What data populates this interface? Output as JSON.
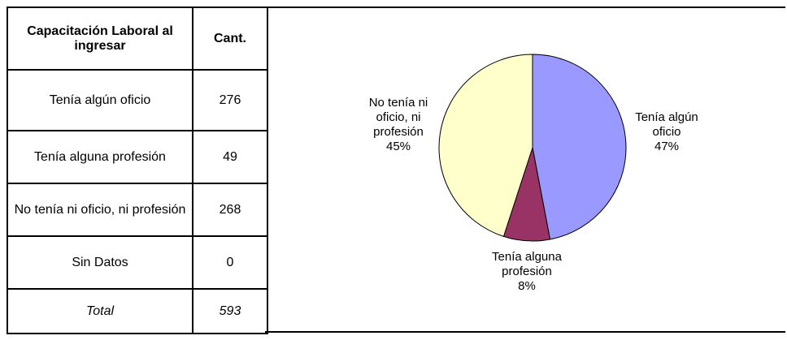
{
  "table": {
    "header": [
      "Capacitación Laboral al ingresar",
      "Cant."
    ],
    "rows": [
      [
        "Tenía algún oficio",
        "276"
      ],
      [
        "Tenía alguna profesión",
        "49"
      ],
      [
        "No tenía ni oficio, ni profesión",
        "268"
      ],
      [
        "Sin Datos",
        "0"
      ],
      [
        "Total",
        "593"
      ]
    ]
  },
  "chart_data": {
    "type": "pie",
    "categories": [
      "Tenía algún oficio",
      "Tenía alguna profesión",
      "No tenía ni oficio, ni profesión"
    ],
    "values": [
      47,
      8,
      45
    ],
    "value_labels": [
      "47%",
      "8%",
      "45%"
    ],
    "colors": [
      "#9999ff",
      "#993366",
      "#ffffcc"
    ]
  }
}
